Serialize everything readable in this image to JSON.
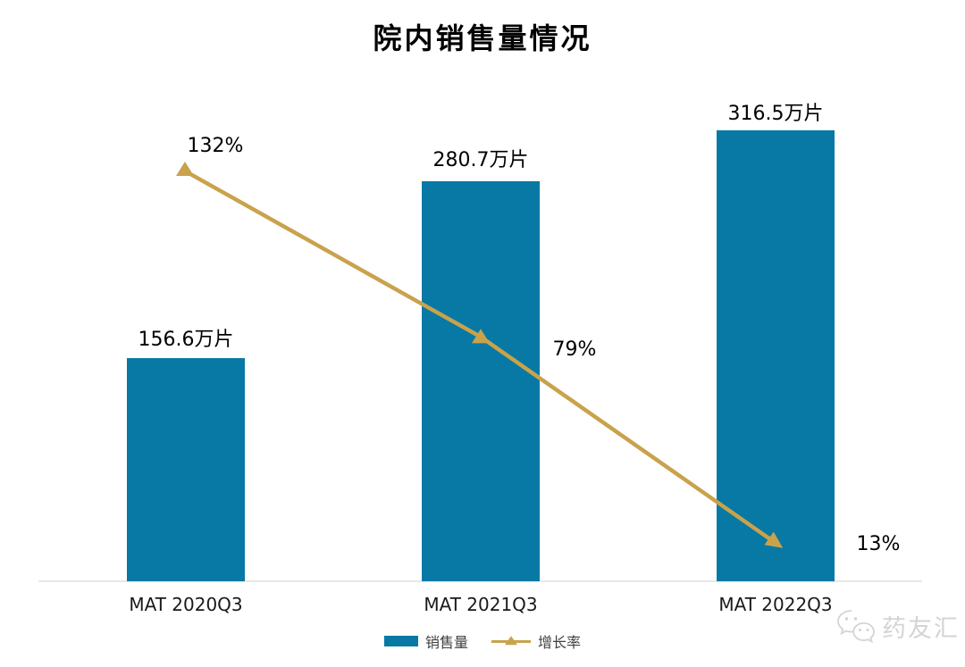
{
  "title": "院内销售量情况",
  "chart_data": {
    "type": "bar+line",
    "categories": [
      "MAT 2020Q3",
      "MAT 2021Q3",
      "MAT 2022Q3"
    ],
    "series": [
      {
        "name": "销售量",
        "type": "bar",
        "unit": "万片",
        "values": [
          156.6,
          280.7,
          316.5
        ],
        "labels": [
          "156.6万片",
          "280.7万片",
          "316.5万片"
        ],
        "color": "#0779A4"
      },
      {
        "name": "增长率",
        "type": "line",
        "unit": "%",
        "values": [
          132,
          79,
          13
        ],
        "labels": [
          "132%",
          "79%",
          "13%"
        ],
        "color": "#C9A24C",
        "marker": "triangle"
      }
    ],
    "legend": [
      "销售量",
      "增长率"
    ],
    "legend_position": "bottom",
    "grid": false,
    "y_axis_visible": false,
    "x_axis_line": true
  },
  "watermark": {
    "icon": "wechat-icon",
    "text": "药友汇"
  },
  "colors": {
    "bar": "#0779A4",
    "line": "#C9A24C",
    "axis": "#E8E8E8",
    "text": "#000000",
    "legend_text": "#404040",
    "watermark": "#D4D4D4",
    "background": "#FFFFFF"
  }
}
